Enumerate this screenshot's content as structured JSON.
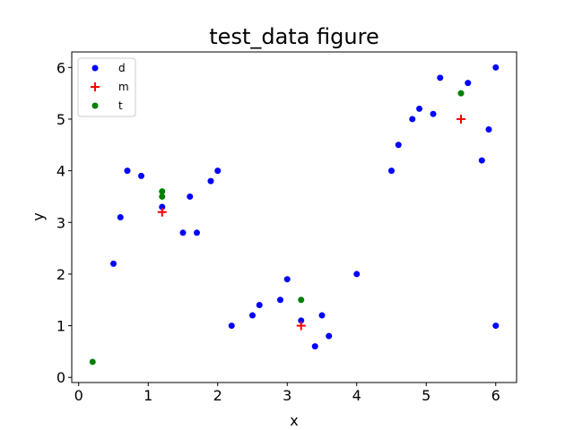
{
  "chart_data": {
    "type": "scatter",
    "title": "test_data figure",
    "xlabel": "x",
    "ylabel": "y",
    "xlim": [
      -0.1,
      6.3
    ],
    "ylim": [
      -0.1,
      6.3
    ],
    "xticks": [
      "0",
      "1",
      "2",
      "3",
      "4",
      "5",
      "6"
    ],
    "yticks": [
      "0",
      "1",
      "2",
      "3",
      "4",
      "5",
      "6"
    ],
    "grid": false,
    "legend_position": "top-left",
    "series": [
      {
        "name": "d",
        "marker": "circle",
        "color": "#0000ff",
        "points": [
          [
            0.5,
            2.2
          ],
          [
            0.6,
            3.1
          ],
          [
            0.7,
            4.0
          ],
          [
            0.9,
            3.9
          ],
          [
            1.2,
            3.3
          ],
          [
            1.5,
            2.8
          ],
          [
            1.6,
            3.5
          ],
          [
            1.7,
            2.8
          ],
          [
            1.9,
            3.8
          ],
          [
            2.0,
            4.0
          ],
          [
            2.2,
            1.0
          ],
          [
            2.5,
            1.2
          ],
          [
            2.6,
            1.4
          ],
          [
            2.9,
            1.5
          ],
          [
            3.0,
            1.9
          ],
          [
            3.2,
            1.1
          ],
          [
            3.4,
            0.6
          ],
          [
            3.5,
            1.2
          ],
          [
            3.6,
            0.8
          ],
          [
            4.0,
            2.0
          ],
          [
            4.5,
            4.0
          ],
          [
            4.6,
            4.5
          ],
          [
            4.8,
            5.0
          ],
          [
            4.9,
            5.2
          ],
          [
            5.1,
            5.1
          ],
          [
            5.2,
            5.8
          ],
          [
            5.6,
            5.7
          ],
          [
            5.8,
            4.2
          ],
          [
            5.9,
            4.8
          ],
          [
            6.0,
            6.0
          ],
          [
            6.0,
            1.0
          ]
        ]
      },
      {
        "name": "m",
        "marker": "plus",
        "color": "#ff0000",
        "points": [
          [
            1.2,
            3.2
          ],
          [
            3.2,
            1.0
          ],
          [
            5.5,
            5.0
          ]
        ]
      },
      {
        "name": "t",
        "marker": "circle",
        "color": "#008000",
        "points": [
          [
            0.2,
            0.3
          ],
          [
            1.2,
            3.6
          ],
          [
            1.2,
            3.5
          ],
          [
            3.2,
            1.5
          ],
          [
            5.5,
            5.5
          ]
        ]
      }
    ]
  }
}
